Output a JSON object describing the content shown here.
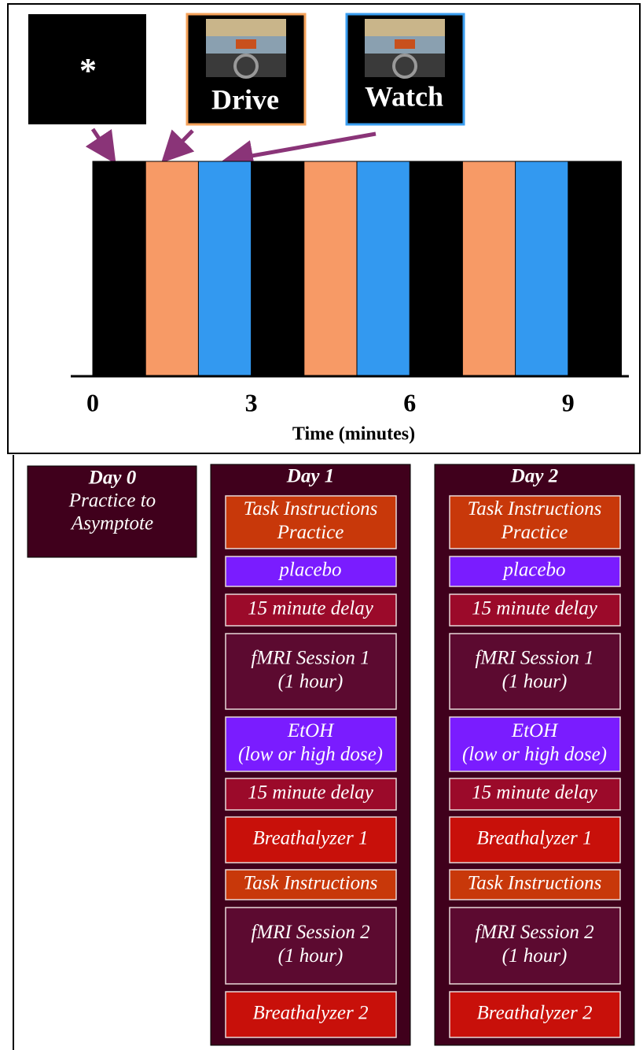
{
  "timeline": {
    "fixation_label": "*",
    "drive_label": "Drive",
    "watch_label": "Watch",
    "ticks": [
      0,
      3,
      6,
      9
    ],
    "axis_label": "Time (minutes)"
  },
  "schedule": {
    "day0": {
      "title": "Day 0",
      "lines": [
        "Practice to",
        "Asymptote"
      ]
    },
    "days": [
      {
        "title": "Day 1",
        "steps": [
          [
            "Task Instructions",
            "Practice"
          ],
          [
            "placebo"
          ],
          [
            "15 minute delay"
          ],
          [
            "fMRI Session 1",
            "(1 hour)"
          ],
          [
            "EtOH",
            "(low or high dose)"
          ],
          [
            "15 minute delay"
          ],
          [
            "Breathalyzer 1"
          ],
          [
            "Task Instructions"
          ],
          [
            "fMRI Session 2",
            "(1 hour)"
          ],
          [
            "Breathalyzer 2"
          ]
        ]
      },
      {
        "title": "Day 2",
        "steps": [
          [
            "Task Instructions",
            "Practice"
          ],
          [
            "placebo"
          ],
          [
            "15 minute delay"
          ],
          [
            "fMRI Session 1",
            "(1 hour)"
          ],
          [
            "EtOH",
            "(low or high dose)"
          ],
          [
            "15 minute delay"
          ],
          [
            "Breathalyzer 1"
          ],
          [
            "Task Instructions"
          ],
          [
            "fMRI Session 2",
            "(1 hour)"
          ],
          [
            "Breathalyzer 2"
          ]
        ]
      }
    ]
  }
}
